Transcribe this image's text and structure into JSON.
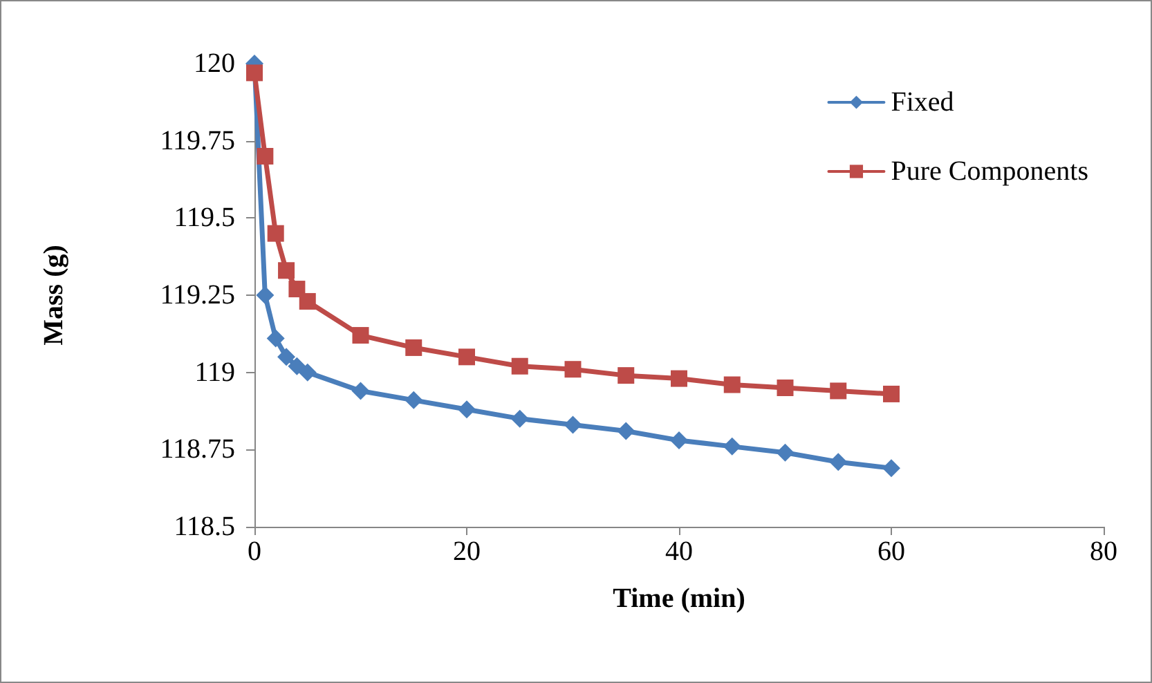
{
  "chart_data": {
    "type": "line",
    "xlabel": "Time (min)",
    "ylabel": "Mass (g)",
    "x": [
      0,
      1,
      2,
      3,
      4,
      5,
      10,
      15,
      20,
      25,
      30,
      35,
      40,
      45,
      50,
      55,
      60
    ],
    "series": [
      {
        "name": "Fixed",
        "color": "#4a7ebb",
        "marker": "diamond",
        "values": [
          120,
          119.25,
          119.11,
          119.05,
          119.02,
          119.0,
          118.94,
          118.91,
          118.88,
          118.85,
          118.83,
          118.81,
          118.78,
          118.76,
          118.74,
          118.71,
          118.69
        ]
      },
      {
        "name": "Pure Components",
        "color": "#be4b48",
        "marker": "square",
        "values": [
          119.97,
          119.7,
          119.45,
          119.33,
          119.27,
          119.23,
          119.12,
          119.08,
          119.05,
          119.02,
          119.01,
          118.99,
          118.98,
          118.96,
          118.95,
          118.94,
          118.93
        ]
      }
    ],
    "xlim": [
      0,
      80
    ],
    "xticks": [
      0,
      20,
      40,
      60,
      80
    ],
    "ylim": [
      118.5,
      120
    ],
    "yticks": [
      118.5,
      118.75,
      119,
      119.25,
      119.5,
      119.75,
      120
    ],
    "grid": false,
    "legend": "top right",
    "line_style": "solid"
  }
}
